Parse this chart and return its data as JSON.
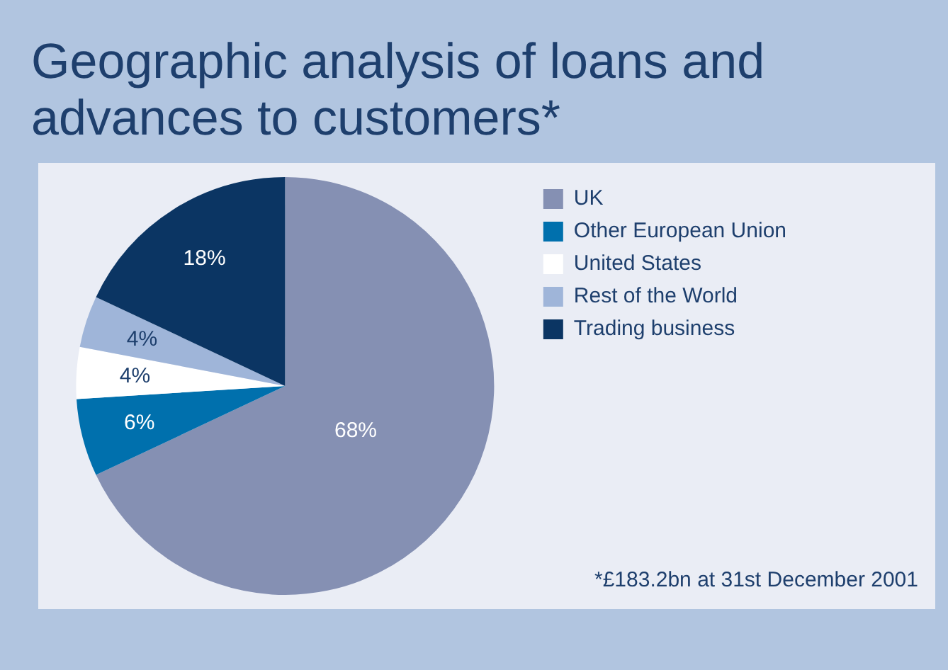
{
  "chart_data": {
    "type": "pie",
    "title": "Geographic analysis of loans and advances to customers*",
    "categories": [
      "UK",
      "Other European Union",
      "United States",
      "Rest of the World",
      "Trading business"
    ],
    "values": [
      68,
      6,
      4,
      4,
      18
    ],
    "colors": [
      "#8590b3",
      "#0070ad",
      "#ffffff",
      "#9fb5d9",
      "#0b3563"
    ],
    "value_labels": [
      "68%",
      "6%",
      "4%",
      "4%",
      "18%"
    ],
    "legend": "top right",
    "annotations": [
      "*£183.2bn at 31st December 2001"
    ]
  }
}
